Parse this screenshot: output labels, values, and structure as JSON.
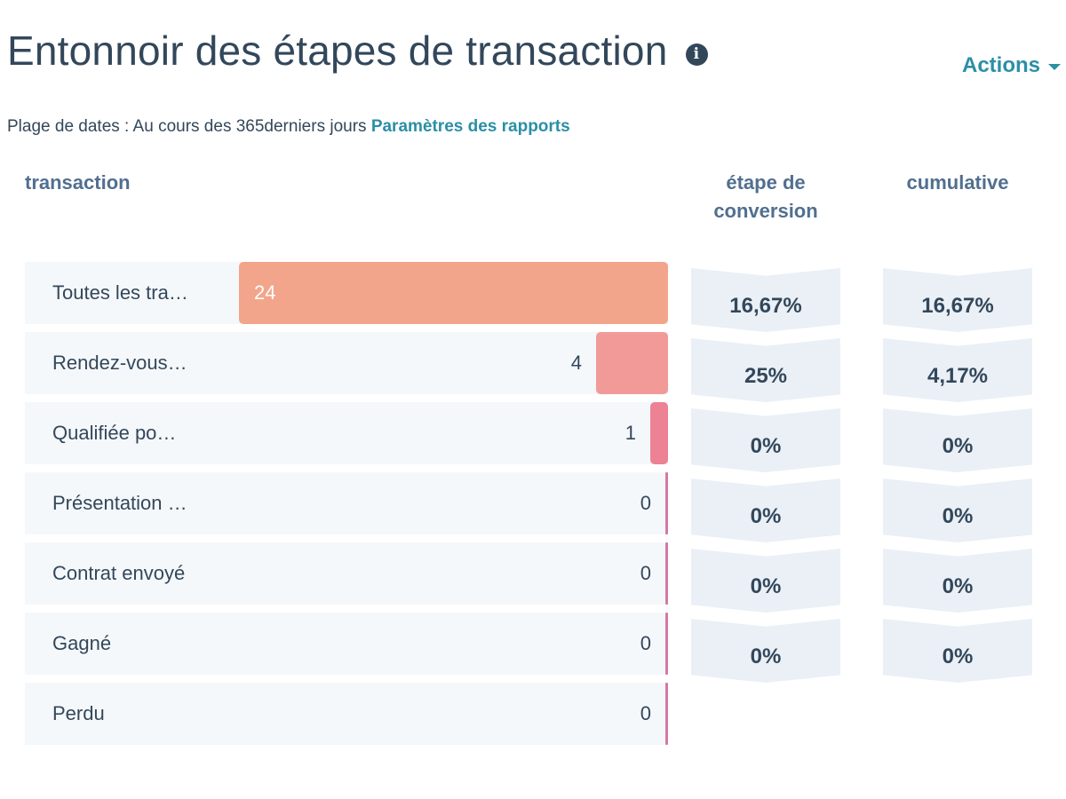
{
  "header": {
    "title": "Entonnoir des étapes de transaction",
    "info_icon": "info-icon",
    "actions_label": "Actions"
  },
  "filters": {
    "date_range": "Plage de dates : Au cours des 365derniers jours",
    "report_settings_link": "Paramètres des rapports"
  },
  "columns": {
    "transaction": "transaction",
    "step_conversion_line1": "étape de",
    "step_conversion_line2": "conversion",
    "cumulative": "cumulative"
  },
  "colors": {
    "accent": "#2b8fa6",
    "bar_1": "#f2a58a",
    "bar_2": "#f29a97",
    "bar_3": "#ec8293",
    "bar_tail": "#d678a6"
  },
  "chart_data": {
    "type": "bar",
    "orientation": "horizontal-funnel",
    "title": "Entonnoir des étapes de transaction",
    "xlabel": "",
    "ylabel": "transaction",
    "xlim": [
      0,
      24
    ],
    "categories": [
      "Toutes les tra…",
      "Rendez-vous…",
      "Qualifiée po…",
      "Présentation …",
      "Contrat envoyé",
      "Gagné",
      "Perdu"
    ],
    "values": [
      24,
      4,
      1,
      0,
      0,
      0,
      0
    ],
    "step_conversion": [
      "16,67%",
      "25%",
      "0%",
      "0%",
      "0%",
      "0%"
    ],
    "cumulative": [
      "16,67%",
      "4,17%",
      "0%",
      "0%",
      "0%",
      "0%"
    ]
  }
}
